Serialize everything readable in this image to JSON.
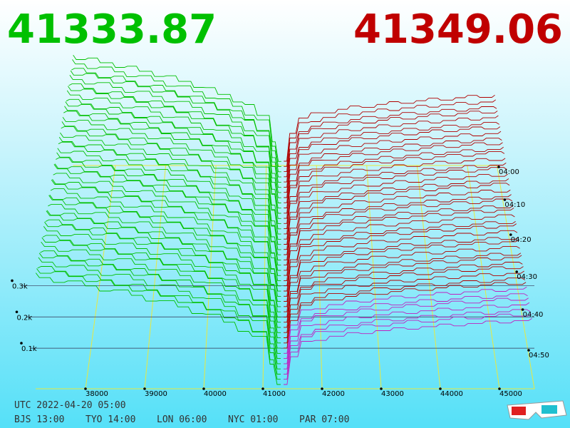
{
  "header": {
    "bid": "41333.87",
    "ask": "41349.06"
  },
  "price_axis": [
    "38000",
    "39000",
    "40000",
    "41000",
    "42000",
    "43000",
    "44000",
    "45000"
  ],
  "depth_axis": [
    "0.1k",
    "0.2k",
    "0.3k"
  ],
  "time_axis": [
    "04:00",
    "04:10",
    "04:20",
    "04:30",
    "04:40",
    "04:50"
  ],
  "footer": {
    "utc": "UTC 2022-04-20 05:00",
    "zones": [
      "BJS 13:00",
      "TYO 14:00",
      "LON 06:00",
      "NYC 01:00",
      "PAR 07:00"
    ]
  }
}
